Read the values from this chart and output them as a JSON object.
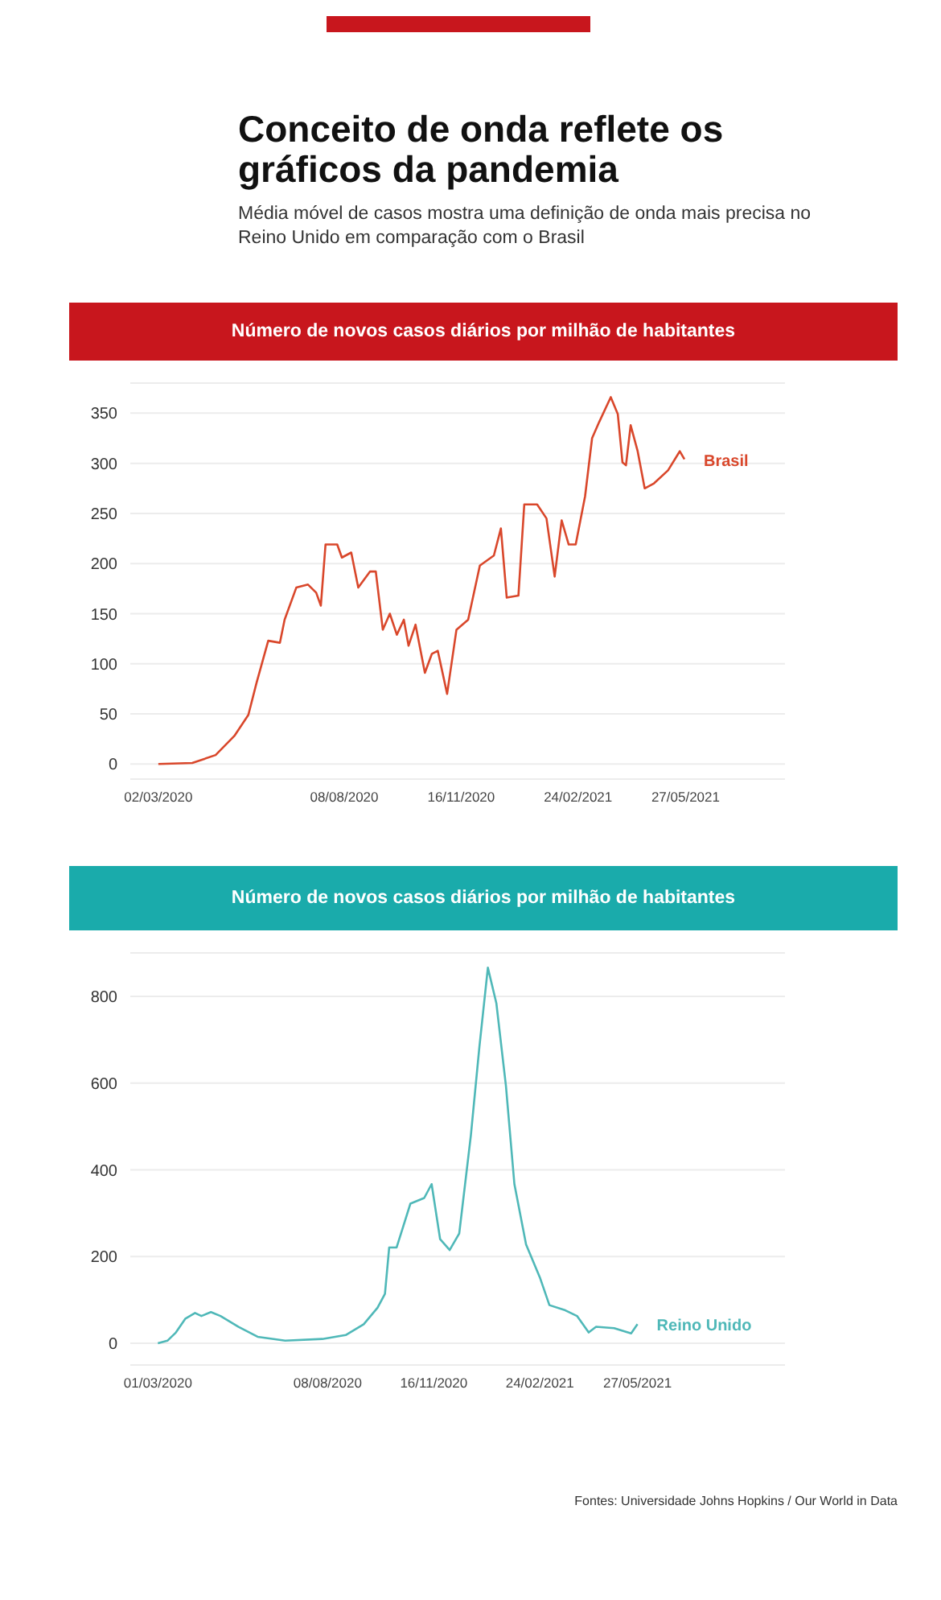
{
  "chart_data": [
    {
      "type": "line",
      "title": "Conceito de onda reflete os gráficos da pandemia",
      "subtitle": "Média móvel de casos mostra uma definição de onda mais precisa no Reino Unido em comparação com o Brasil",
      "ylabel": "Número de novos casos diários por milhão de habitantes",
      "grid": "y",
      "xlim": [
        "2020-02-07",
        "2021-08-20"
      ],
      "xticks": [
        {
          "value": "2020-03-02",
          "label": "02/03/2020"
        },
        {
          "value": "2020-08-08",
          "label": "08/08/2020"
        },
        {
          "value": "2020-11-16",
          "label": "16/11/2020"
        },
        {
          "value": "2021-02-24",
          "label": "24/02/2021"
        },
        {
          "value": "2021-05-27",
          "label": "27/05/2021"
        }
      ],
      "ylim": [
        -15,
        380
      ],
      "yticks": [
        0,
        50,
        100,
        150,
        200,
        250,
        300,
        350
      ],
      "x": [
        "2020-03-02",
        "2020-03-31",
        "2020-04-20",
        "2020-05-06",
        "2020-05-18",
        "2020-05-25",
        "2020-06-04",
        "2020-06-14",
        "2020-06-18",
        "2020-06-28",
        "2020-07-08",
        "2020-07-15",
        "2020-07-19",
        "2020-07-23",
        "2020-08-02",
        "2020-08-06",
        "2020-08-14",
        "2020-08-20",
        "2020-08-30",
        "2020-09-04",
        "2020-09-10",
        "2020-09-16",
        "2020-09-22",
        "2020-09-28",
        "2020-10-02",
        "2020-10-08",
        "2020-10-16",
        "2020-10-22",
        "2020-10-27",
        "2020-11-04",
        "2020-11-12",
        "2020-11-22",
        "2020-12-02",
        "2020-12-14",
        "2020-12-20",
        "2020-12-25",
        "2021-01-04",
        "2021-01-09",
        "2021-01-20",
        "2021-01-28",
        "2021-02-04",
        "2021-02-10",
        "2021-02-16",
        "2021-02-22",
        "2021-03-02",
        "2021-03-08",
        "2021-03-14",
        "2021-03-24",
        "2021-03-30",
        "2021-04-03",
        "2021-04-06",
        "2021-04-10",
        "2021-04-16",
        "2021-04-22",
        "2021-04-30",
        "2021-05-12",
        "2021-05-22",
        "2021-05-26"
      ],
      "series": [
        {
          "name": "Brasil",
          "color": "#d9472b",
          "values": [
            0,
            1,
            9,
            28,
            49,
            81,
            123,
            121,
            144,
            176,
            179,
            171,
            158,
            219,
            219,
            206,
            211,
            176,
            192,
            192,
            134,
            150,
            129,
            144,
            118,
            139,
            91,
            110,
            113,
            70,
            134,
            144,
            198,
            208,
            235,
            166,
            168,
            259,
            259,
            245,
            187,
            243,
            219,
            219,
            267,
            325,
            341,
            366,
            349,
            301,
            298,
            338,
            312,
            275,
            280,
            293,
            312,
            304
          ]
        }
      ]
    },
    {
      "type": "line",
      "ylabel": "Número de novos casos diários por milhão de habitantes",
      "grid": "y",
      "xlim": [
        "2020-02-04",
        "2021-10-13"
      ],
      "xticks": [
        {
          "value": "2020-03-01",
          "label": "01/03/2020"
        },
        {
          "value": "2020-08-08",
          "label": "08/08/2020"
        },
        {
          "value": "2020-11-16",
          "label": "16/11/2020"
        },
        {
          "value": "2021-02-24",
          "label": "24/02/2021"
        },
        {
          "value": "2021-05-27",
          "label": "27/05/2021"
        }
      ],
      "ylim": [
        -50,
        900
      ],
      "yticks": [
        0,
        200,
        400,
        600,
        800
      ],
      "annotations": [
        "Fontes: Universidade Johns Hopkins / Our World in Data"
      ],
      "x": [
        "2020-03-01",
        "2020-03-10",
        "2020-03-18",
        "2020-03-27",
        "2020-04-05",
        "2020-04-11",
        "2020-04-20",
        "2020-04-29",
        "2020-05-16",
        "2020-06-03",
        "2020-06-29",
        "2020-08-03",
        "2020-08-25",
        "2020-09-11",
        "2020-09-24",
        "2020-10-01",
        "2020-10-05",
        "2020-10-12",
        "2020-10-25",
        "2020-11-07",
        "2020-11-14",
        "2020-11-22",
        "2020-12-01",
        "2020-12-10",
        "2020-12-21",
        "2020-12-29",
        "2021-01-06",
        "2021-01-14",
        "2021-01-23",
        "2021-01-31",
        "2021-02-11",
        "2021-02-24",
        "2021-03-05",
        "2021-03-20",
        "2021-03-31",
        "2021-04-11",
        "2021-04-18",
        "2021-05-05",
        "2021-05-21",
        "2021-05-27"
      ],
      "series": [
        {
          "name": "Reino Unido",
          "color": "#4fb8b8",
          "values": [
            0,
            6,
            25,
            57,
            70,
            63,
            72,
            63,
            38,
            15,
            6,
            10,
            19,
            44,
            82,
            114,
            221,
            221,
            322,
            335,
            367,
            240,
            215,
            253,
            480,
            683,
            866,
            784,
            594,
            367,
            228,
            152,
            88,
            76,
            63,
            25,
            38,
            35,
            23,
            44
          ]
        }
      ]
    }
  ]
}
